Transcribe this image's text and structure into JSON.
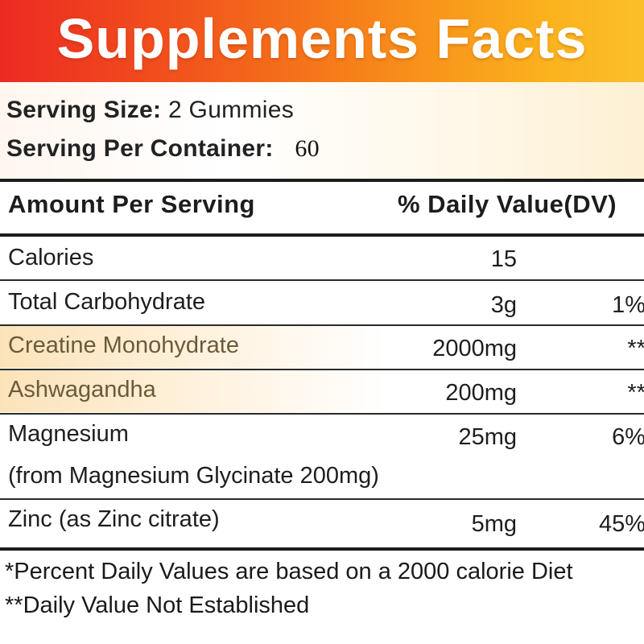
{
  "title": "Supplements Facts",
  "serving": {
    "size_label": "Serving Size:",
    "size_value": "2 Gummies",
    "per_container_label": "Serving Per Container:",
    "per_container_value": "60"
  },
  "table": {
    "header_amount": "Amount Per Serving",
    "header_dv": "% Daily Value(DV)",
    "rows": [
      {
        "name": "Calories",
        "amount": "15",
        "dv": ""
      },
      {
        "name": "Total Carbohydrate",
        "amount": "3g",
        "dv": "1%"
      },
      {
        "name": "Creatine Monohydrate",
        "amount": "2000mg",
        "dv": "**"
      },
      {
        "name": "Ashwagandha",
        "amount": "200mg",
        "dv": "**"
      },
      {
        "name": "Magnesium",
        "subname": "(from Magnesium Glycinate 200mg)",
        "amount": "25mg",
        "dv": "6%"
      },
      {
        "name": "Zinc (as Zinc citrate)",
        "amount": "5mg",
        "dv": "45%"
      }
    ]
  },
  "footnotes": [
    "*Percent Daily Values are based on a 2000 calorie Diet",
    "**Daily Value Not Established"
  ],
  "colors": {
    "title_gradient_start": "#ec2a22",
    "title_gradient_end": "#fbbf2a",
    "highlight_row": "#fbe3b9"
  }
}
